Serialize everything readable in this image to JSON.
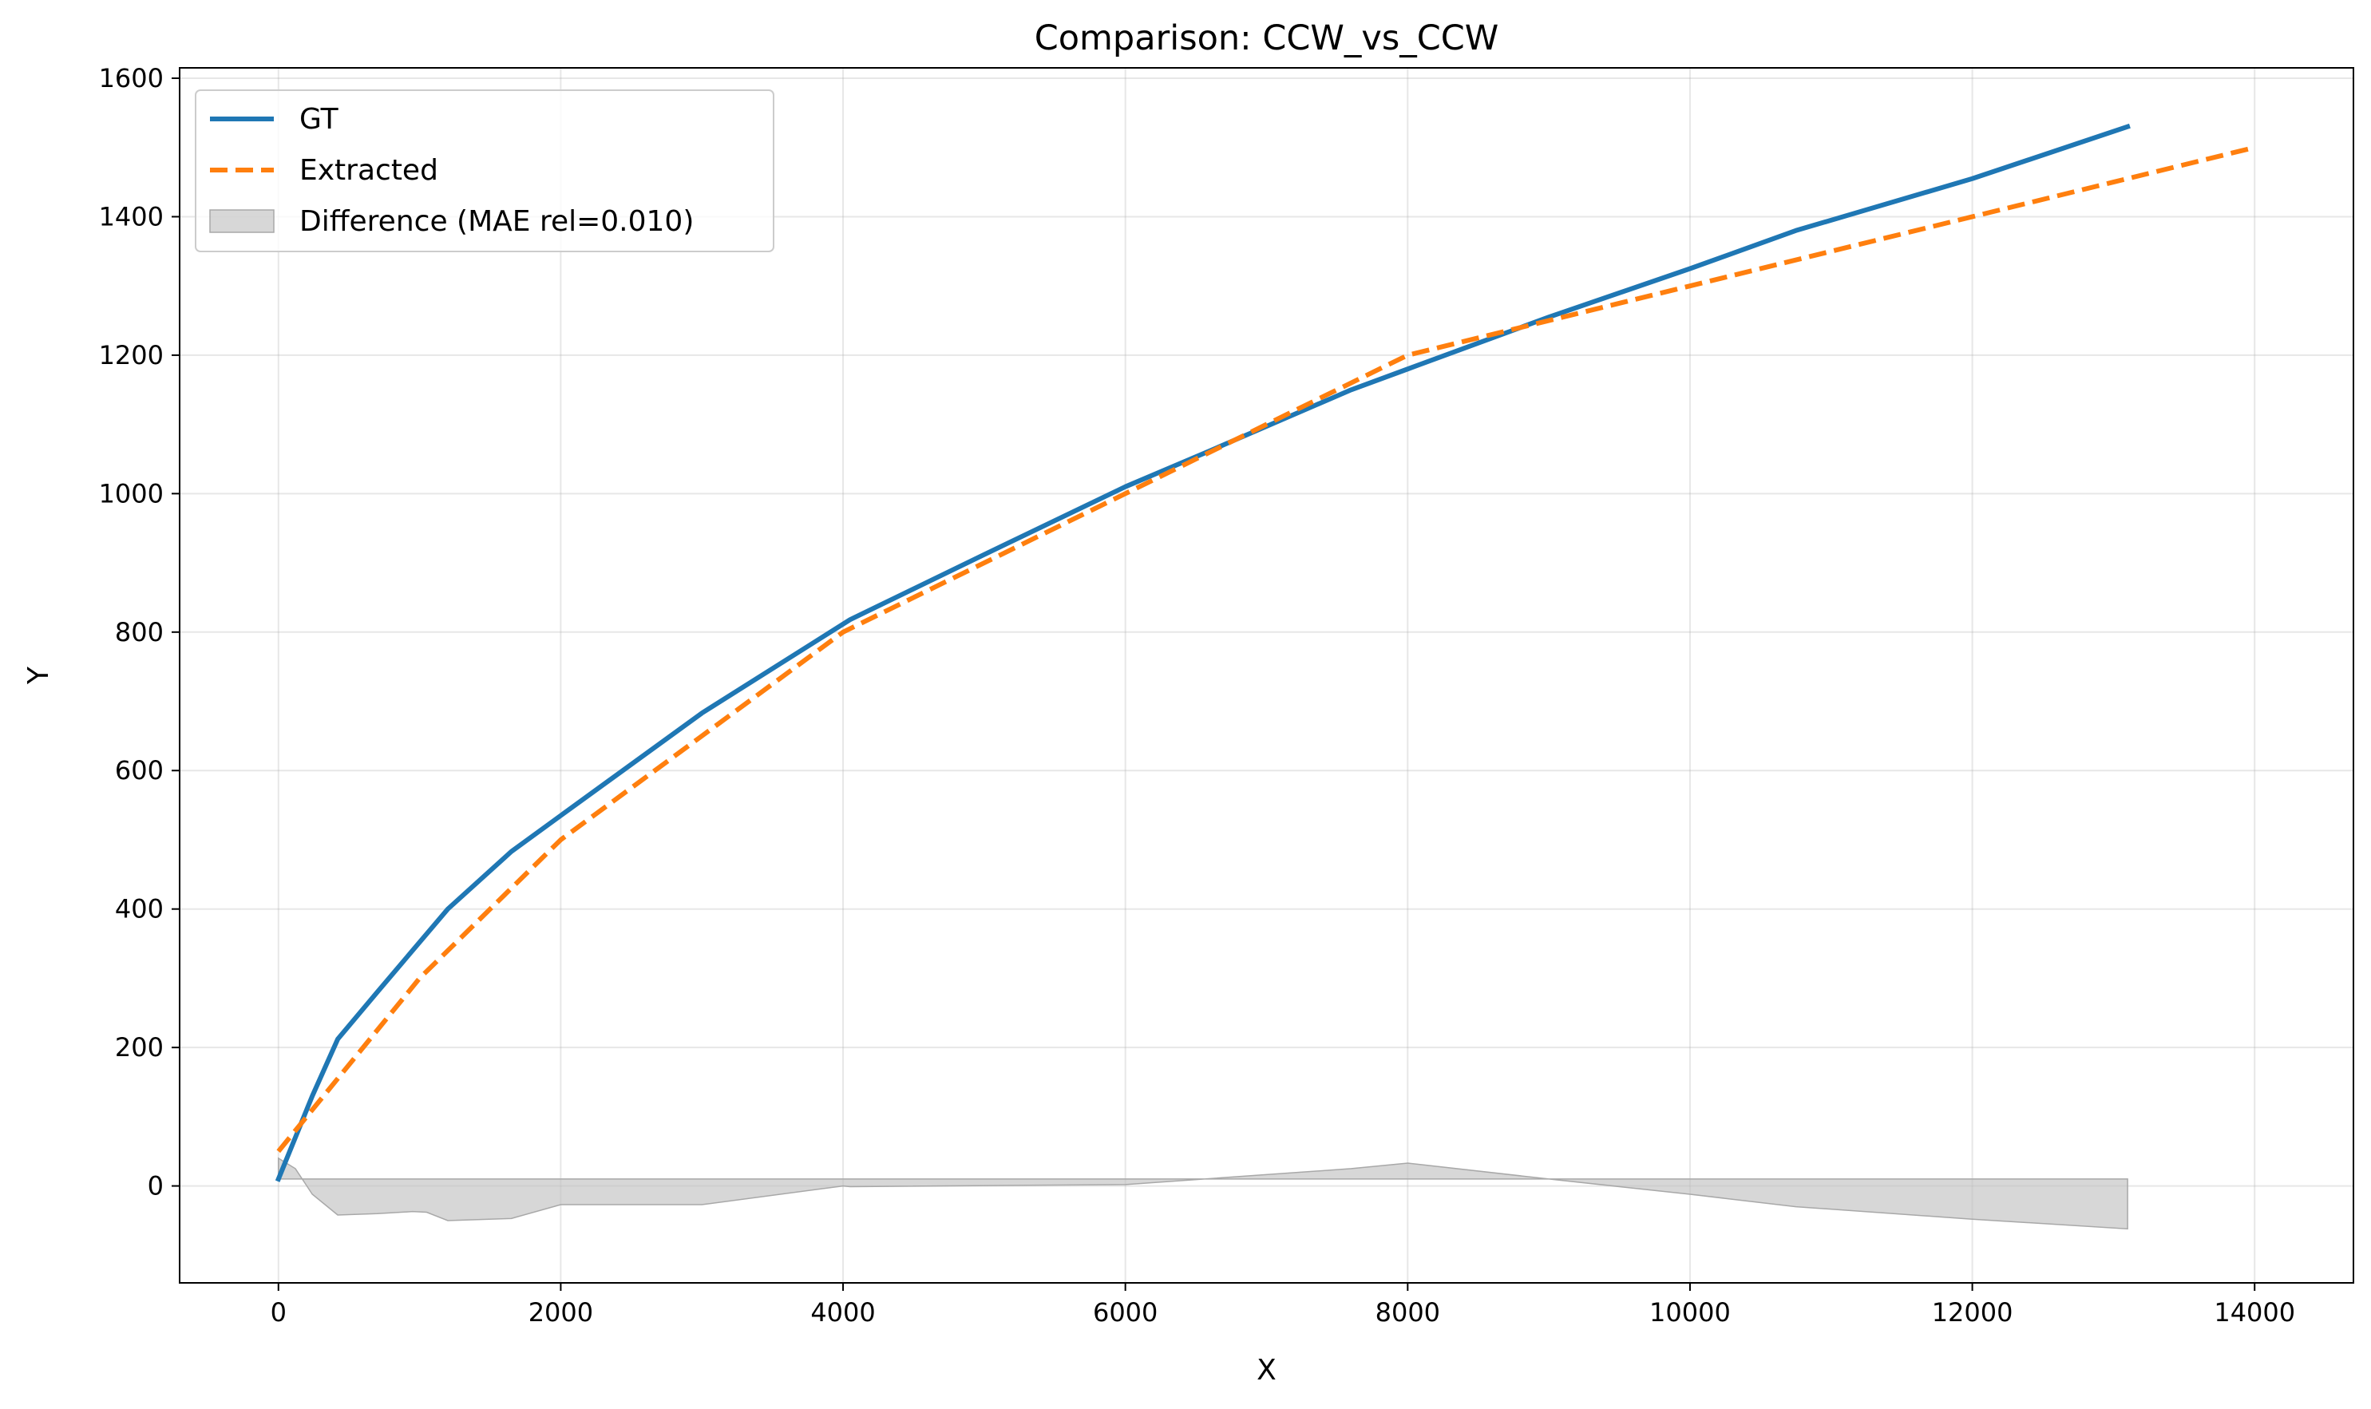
{
  "chart_data": {
    "type": "line",
    "title": "Comparison: CCW_vs_CCW",
    "xlabel": "X",
    "ylabel": "Y",
    "xlim": [
      -700,
      14700
    ],
    "ylim": [
      -140,
      1615
    ],
    "xticks": [
      0,
      2000,
      4000,
      6000,
      8000,
      10000,
      12000,
      14000
    ],
    "yticks": [
      0,
      200,
      400,
      600,
      800,
      1000,
      1200,
      1400,
      1600
    ],
    "grid": true,
    "legend_position": "upper-left",
    "series": [
      {
        "name": "GT",
        "style": "solid",
        "color": "#1f77b4",
        "x": [
          0,
          120,
          240,
          420,
          700,
          950,
          1200,
          1650,
          2000,
          3000,
          4050,
          5000,
          6000,
          6600,
          7600,
          8000,
          9000,
          10000,
          10750,
          12000,
          13100
        ],
        "y": [
          10,
          70,
          130,
          212,
          280,
          340,
          400,
          483,
          535,
          683,
          818,
          912,
          1010,
          1062,
          1150,
          1180,
          1255,
          1325,
          1380,
          1455,
          1530
        ]
      },
      {
        "name": "Extracted",
        "style": "dashed",
        "color": "#ff7f0e",
        "x": [
          0,
          1000,
          2000,
          3000,
          4000,
          5000,
          6000,
          7000,
          8000,
          9000,
          10000,
          11000,
          12000,
          13000,
          14000
        ],
        "y": [
          50,
          300,
          500,
          650,
          800,
          900,
          1000,
          1100,
          1200,
          1250,
          1300,
          1350,
          1400,
          1450,
          1500
        ]
      },
      {
        "name": "Difference (MAE rel=0.010)",
        "style": "fill",
        "color": "#bfbfbf",
        "baseline": 10,
        "x": [
          0,
          120,
          240,
          420,
          700,
          950,
          1050,
          1200,
          1650,
          2000,
          3000,
          4000,
          4050,
          6000,
          7600,
          8000,
          9000,
          10000,
          10750,
          12000,
          13100
        ],
        "y": [
          40,
          25,
          -12,
          -42,
          -40,
          -37,
          -38,
          -50,
          -47,
          -27,
          -27,
          0,
          -1,
          2,
          25,
          33,
          10,
          -12,
          -30,
          -48,
          -62
        ]
      }
    ]
  }
}
